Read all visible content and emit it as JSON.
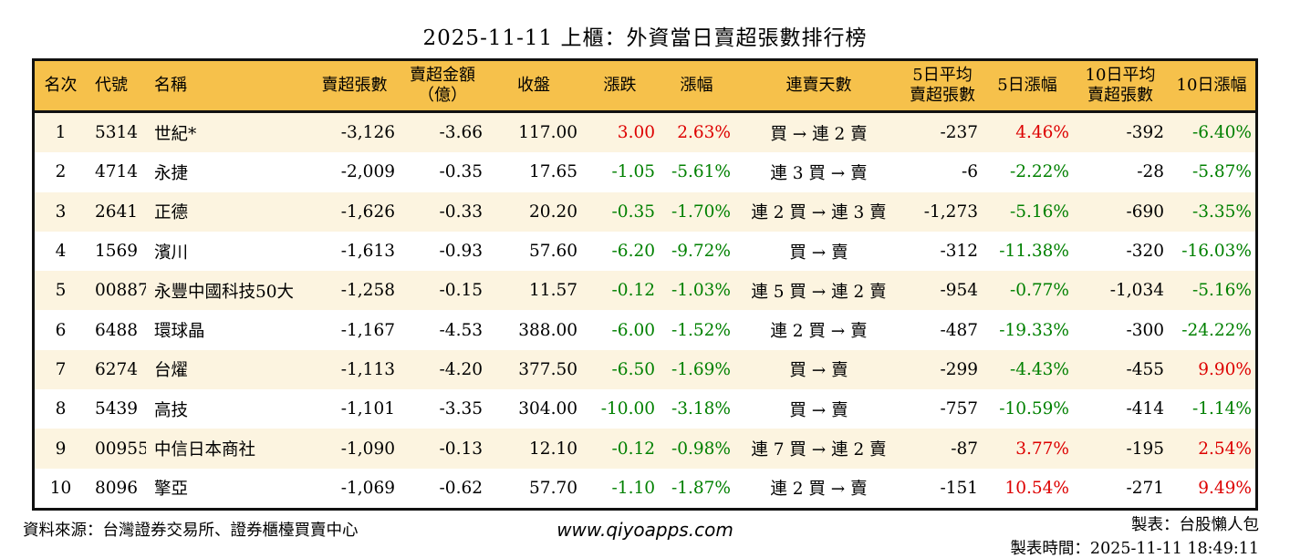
{
  "title": "2025-11-11 上櫃：外資當日賣超張數排行榜",
  "colors": {
    "up": "#dd0000",
    "down": "#008000",
    "header_bg": "#f6c14b",
    "row_alt_bg": "#fcf4e0",
    "border": "#111111"
  },
  "table": {
    "columns": [
      {
        "l1": "名次"
      },
      {
        "l1": "代號"
      },
      {
        "l1": "名稱"
      },
      {
        "l1": "賣超張數"
      },
      {
        "l1": "賣超金額",
        "l2": "（億）"
      },
      {
        "l1": "收盤"
      },
      {
        "l1": "漲跌"
      },
      {
        "l1": "漲幅"
      },
      {
        "l1": "連賣天數"
      },
      {
        "l1": "5日平均",
        "l2": "賣超張數"
      },
      {
        "l1": "5日漲幅"
      },
      {
        "l1": "10日平均",
        "l2": "賣超張數"
      },
      {
        "l1": "10日漲幅"
      }
    ],
    "rows": [
      {
        "rank": "1",
        "code": "5314",
        "name": "世紀*",
        "sell_volume": "-3,126",
        "sell_amount": "-3.66",
        "close": "117.00",
        "change": "3.00",
        "change_pct": "2.63%",
        "streak": "買 → 連 2 賣",
        "avg5": "-237",
        "pct5": "4.46%",
        "avg10": "-392",
        "pct10": "-6.40%"
      },
      {
        "rank": "2",
        "code": "4714",
        "name": "永捷",
        "sell_volume": "-2,009",
        "sell_amount": "-0.35",
        "close": "17.65",
        "change": "-1.05",
        "change_pct": "-5.61%",
        "streak": "連 3 買 → 賣",
        "avg5": "-6",
        "pct5": "-2.22%",
        "avg10": "-28",
        "pct10": "-5.87%"
      },
      {
        "rank": "3",
        "code": "2641",
        "name": "正德",
        "sell_volume": "-1,626",
        "sell_amount": "-0.33",
        "close": "20.20",
        "change": "-0.35",
        "change_pct": "-1.70%",
        "streak": "連 2 買 → 連 3 賣",
        "avg5": "-1,273",
        "pct5": "-5.16%",
        "avg10": "-690",
        "pct10": "-3.35%"
      },
      {
        "rank": "4",
        "code": "1569",
        "name": "濱川",
        "sell_volume": "-1,613",
        "sell_amount": "-0.93",
        "close": "57.60",
        "change": "-6.20",
        "change_pct": "-9.72%",
        "streak": "買 → 賣",
        "avg5": "-312",
        "pct5": "-11.38%",
        "avg10": "-320",
        "pct10": "-16.03%"
      },
      {
        "rank": "5",
        "code": "00887",
        "name": "永豐中國科技50大",
        "sell_volume": "-1,258",
        "sell_amount": "-0.15",
        "close": "11.57",
        "change": "-0.12",
        "change_pct": "-1.03%",
        "streak": "連 5 買 → 連 2 賣",
        "avg5": "-954",
        "pct5": "-0.77%",
        "avg10": "-1,034",
        "pct10": "-5.16%"
      },
      {
        "rank": "6",
        "code": "6488",
        "name": "環球晶",
        "sell_volume": "-1,167",
        "sell_amount": "-4.53",
        "close": "388.00",
        "change": "-6.00",
        "change_pct": "-1.52%",
        "streak": "連 2 買 → 賣",
        "avg5": "-487",
        "pct5": "-19.33%",
        "avg10": "-300",
        "pct10": "-24.22%"
      },
      {
        "rank": "7",
        "code": "6274",
        "name": "台燿",
        "sell_volume": "-1,113",
        "sell_amount": "-4.20",
        "close": "377.50",
        "change": "-6.50",
        "change_pct": "-1.69%",
        "streak": "買 → 賣",
        "avg5": "-299",
        "pct5": "-4.43%",
        "avg10": "-455",
        "pct10": "9.90%"
      },
      {
        "rank": "8",
        "code": "5439",
        "name": "高技",
        "sell_volume": "-1,101",
        "sell_amount": "-3.35",
        "close": "304.00",
        "change": "-10.00",
        "change_pct": "-3.18%",
        "streak": "買 → 賣",
        "avg5": "-757",
        "pct5": "-10.59%",
        "avg10": "-414",
        "pct10": "-1.14%"
      },
      {
        "rank": "9",
        "code": "00955",
        "name": "中信日本商社",
        "sell_volume": "-1,090",
        "sell_amount": "-0.13",
        "close": "12.10",
        "change": "-0.12",
        "change_pct": "-0.98%",
        "streak": "連 7 買 → 連 2 賣",
        "avg5": "-87",
        "pct5": "3.77%",
        "avg10": "-195",
        "pct10": "2.54%"
      },
      {
        "rank": "10",
        "code": "8096",
        "name": "擎亞",
        "sell_volume": "-1,069",
        "sell_amount": "-0.62",
        "close": "57.70",
        "change": "-1.10",
        "change_pct": "-1.87%",
        "streak": "連 2 買 → 賣",
        "avg5": "-151",
        "pct5": "10.54%",
        "avg10": "-271",
        "pct10": "9.49%"
      }
    ]
  },
  "footer": {
    "source": "資料來源：台灣證券交易所、證券櫃檯買賣中心",
    "website": "www.qiyoapps.com",
    "author": "製表：台股懶人包",
    "generated": "製表時間：2025-11-11 18:49:11"
  }
}
